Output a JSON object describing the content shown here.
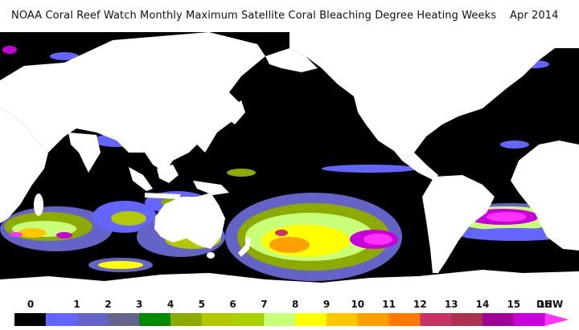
{
  "title": "NOAA Coral Reef Watch Monthly Maximum Satellite Coral Bleaching Degree Heating Weeks    Apr 2014",
  "colors": {
    "ocean": "#000000",
    "land": "#ffffff",
    "background": "#ffffff"
  },
  "legend": {
    "unit": "DHW",
    "ticks": [
      "0",
      "1",
      "2",
      "3",
      "4",
      "5",
      "6",
      "7",
      "8",
      "9",
      "10",
      "11",
      "12",
      "13",
      "14",
      "15",
      "16"
    ],
    "colors": [
      "#000000",
      "#6464ff",
      "#6464c8",
      "#64648c",
      "#008c00",
      "#8caa00",
      "#b4c800",
      "#aad200",
      "#c8ff78",
      "#ffff00",
      "#ffc800",
      "#ffa000",
      "#ff7800",
      "#c83264",
      "#aa3250",
      "#a00096",
      "#c800dc",
      "#ff32ff"
    ]
  }
}
